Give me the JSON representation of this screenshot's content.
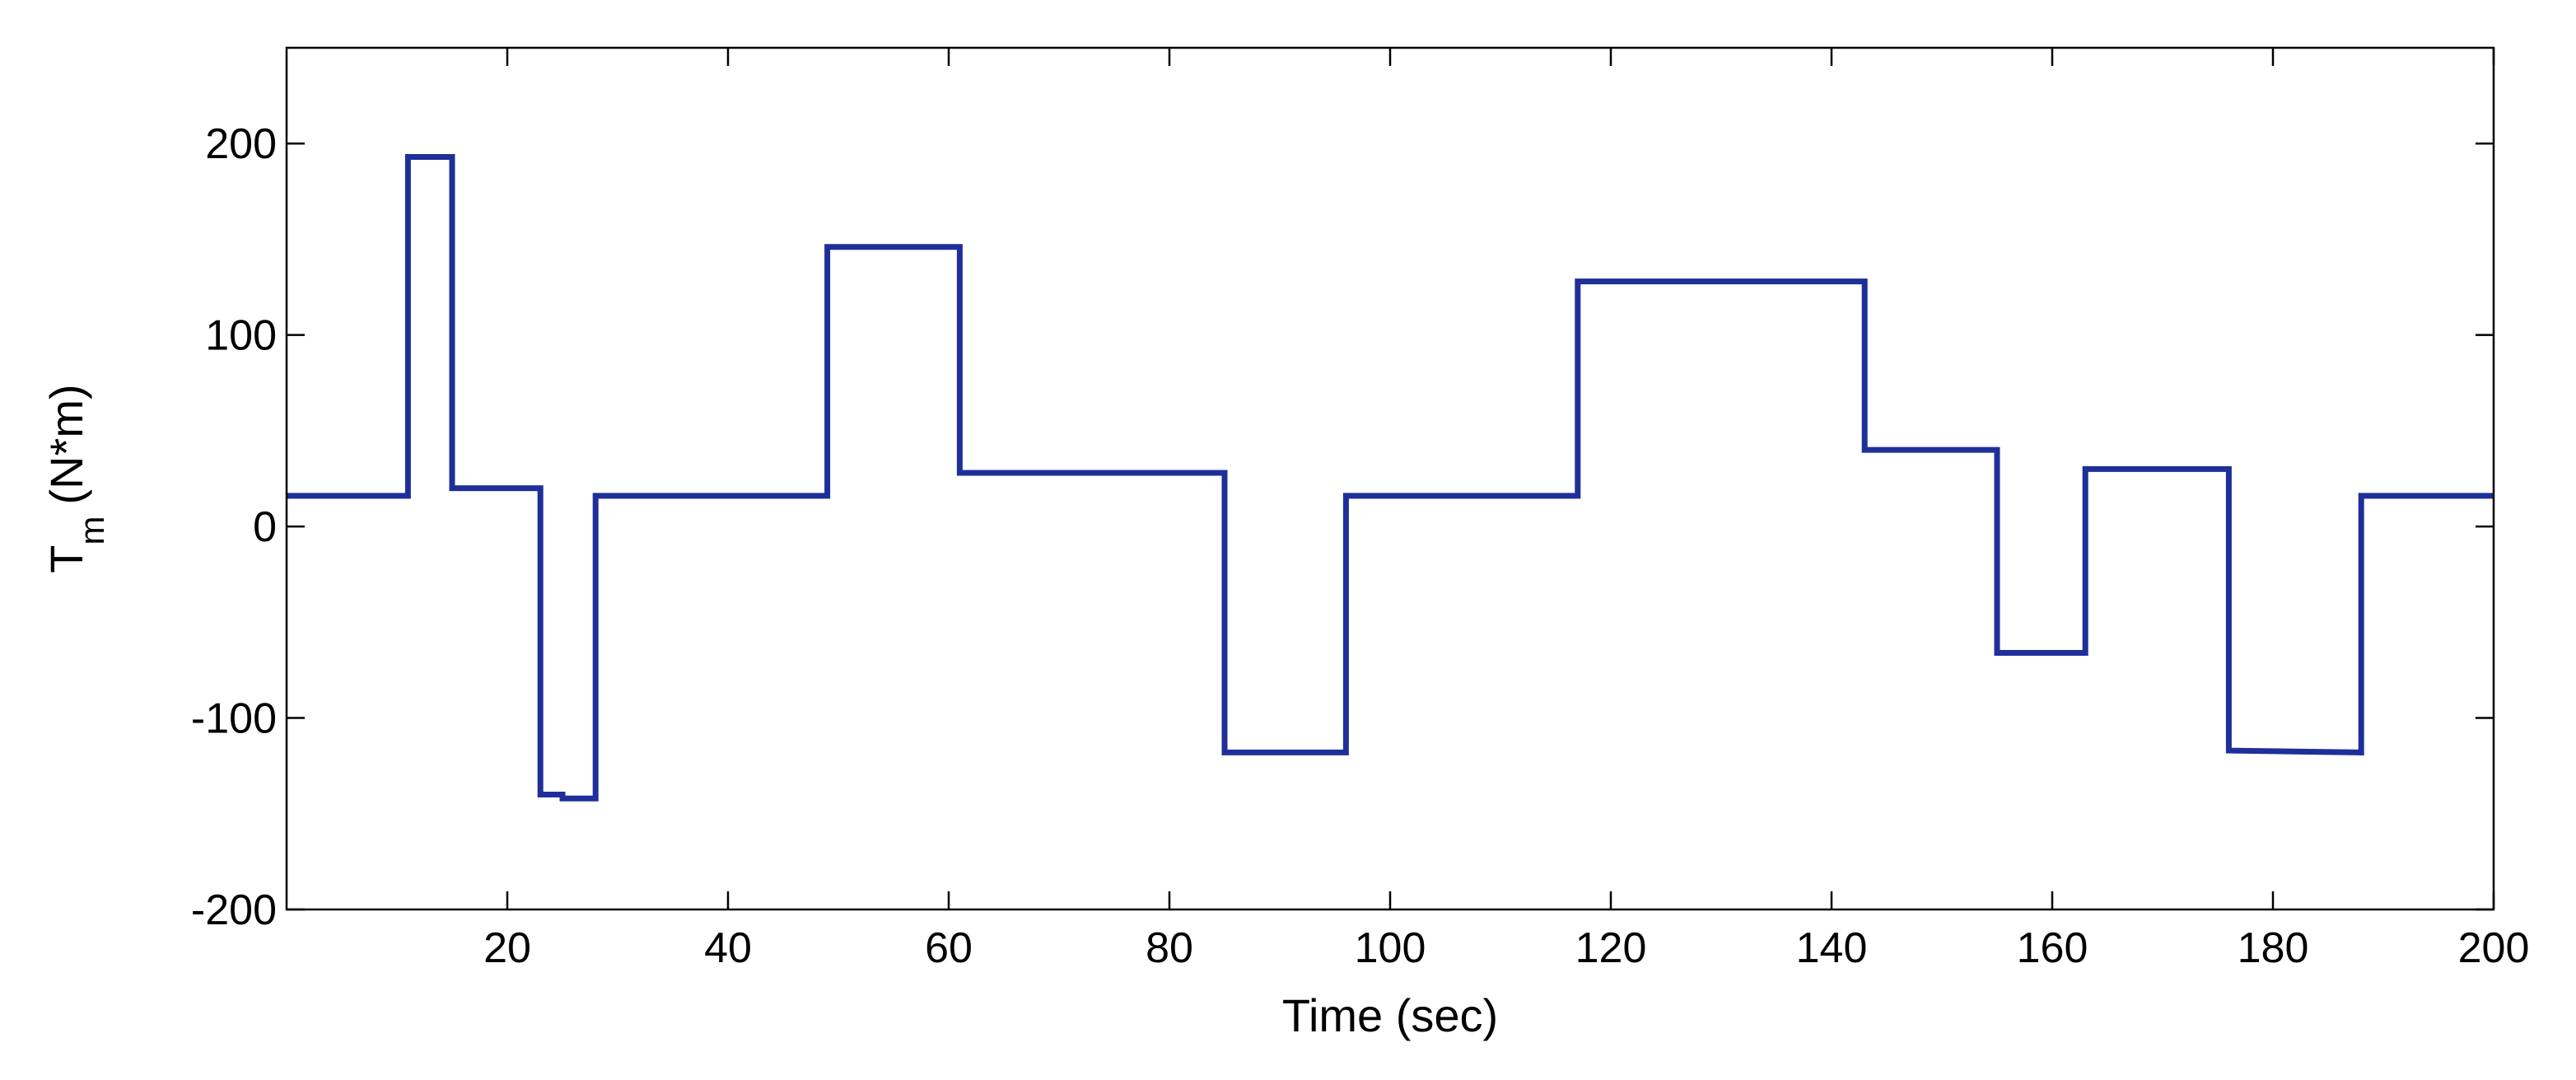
{
  "chart_data": {
    "type": "line",
    "xlabel": "Time (sec)",
    "ylabel": {
      "main": "T",
      "subscript": "m",
      "unit": "(N*m)"
    },
    "xlim": [
      0,
      200
    ],
    "ylim": [
      -200,
      250
    ],
    "xticks": [
      20,
      40,
      60,
      80,
      100,
      120,
      140,
      160,
      180,
      200
    ],
    "yticks": [
      -200,
      -100,
      0,
      100,
      200
    ],
    "grid": false,
    "line_color": "#1f2f9a",
    "series": [
      {
        "x": [
          0,
          11,
          11,
          15,
          15,
          23,
          23,
          25,
          25,
          28,
          28,
          49,
          49,
          61,
          61,
          85,
          85,
          96,
          96,
          117,
          117,
          143,
          143,
          155,
          155,
          163,
          163,
          176,
          176,
          188,
          188,
          200
        ],
        "y": [
          16,
          16,
          193,
          193,
          20,
          20,
          -140,
          -140,
          -142,
          -142,
          16,
          16,
          146,
          146,
          28,
          28,
          -118,
          -118,
          16,
          16,
          128,
          128,
          40,
          40,
          -66,
          -66,
          30,
          30,
          -117,
          -118,
          16,
          16
        ]
      }
    ]
  }
}
